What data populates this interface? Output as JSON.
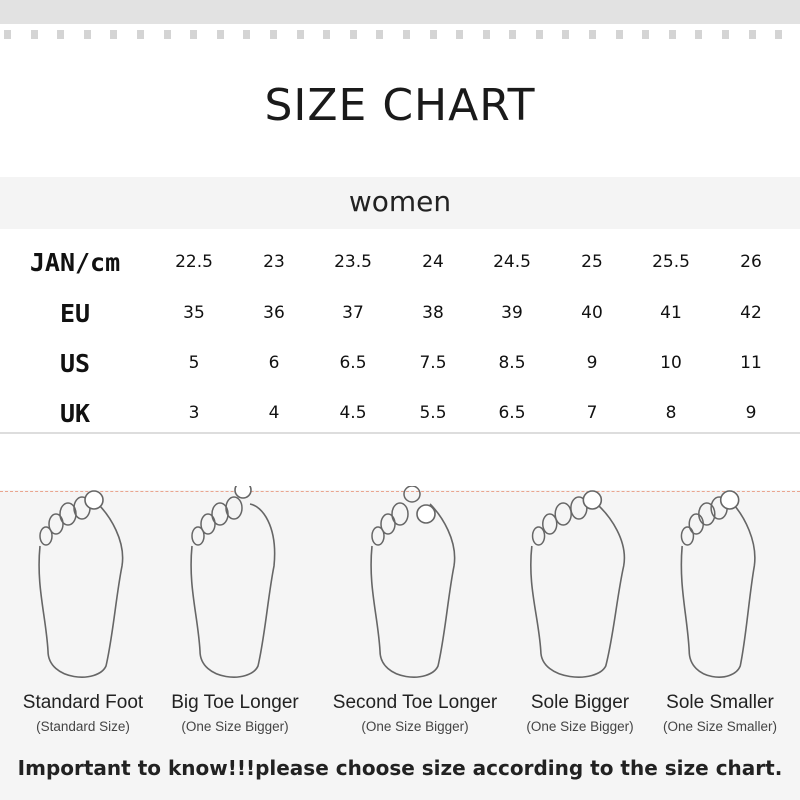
{
  "title": "SIZE CHART",
  "section": "women",
  "table": {
    "rows": [
      {
        "label": "JAN/cm",
        "values": [
          "22.5",
          "23",
          "23.5",
          "24",
          "24.5",
          "25",
          "25.5",
          "26"
        ]
      },
      {
        "label": "EU",
        "values": [
          "35",
          "36",
          "37",
          "38",
          "39",
          "40",
          "41",
          "42"
        ]
      },
      {
        "label": "US",
        "values": [
          "5",
          "6",
          "6.5",
          "7.5",
          "8.5",
          "9",
          "10",
          "11"
        ]
      },
      {
        "label": "UK",
        "values": [
          "3",
          "4",
          "4.5",
          "5.5",
          "6.5",
          "7",
          "8",
          "9"
        ]
      }
    ]
  },
  "foot_types": [
    {
      "label": "Standard Foot",
      "sub": "(Standard Size)",
      "icon": "standard-foot-icon"
    },
    {
      "label": "Big Toe Longer",
      "sub": "(One Size Bigger)",
      "icon": "big-toe-longer-foot-icon"
    },
    {
      "label": "Second Toe Longer",
      "sub": "(One Size Bigger)",
      "icon": "second-toe-longer-foot-icon"
    },
    {
      "label": "Sole Bigger",
      "sub": "(One Size Bigger)",
      "icon": "sole-bigger-foot-icon"
    },
    {
      "label": "Sole Smaller",
      "sub": "(One Size Smaller)",
      "icon": "sole-smaller-foot-icon"
    }
  ],
  "note": "Important to know!!!please choose size according to the size chart.",
  "colors": {
    "guide_line": "#e9a58f",
    "band": "#f4f4f4"
  }
}
